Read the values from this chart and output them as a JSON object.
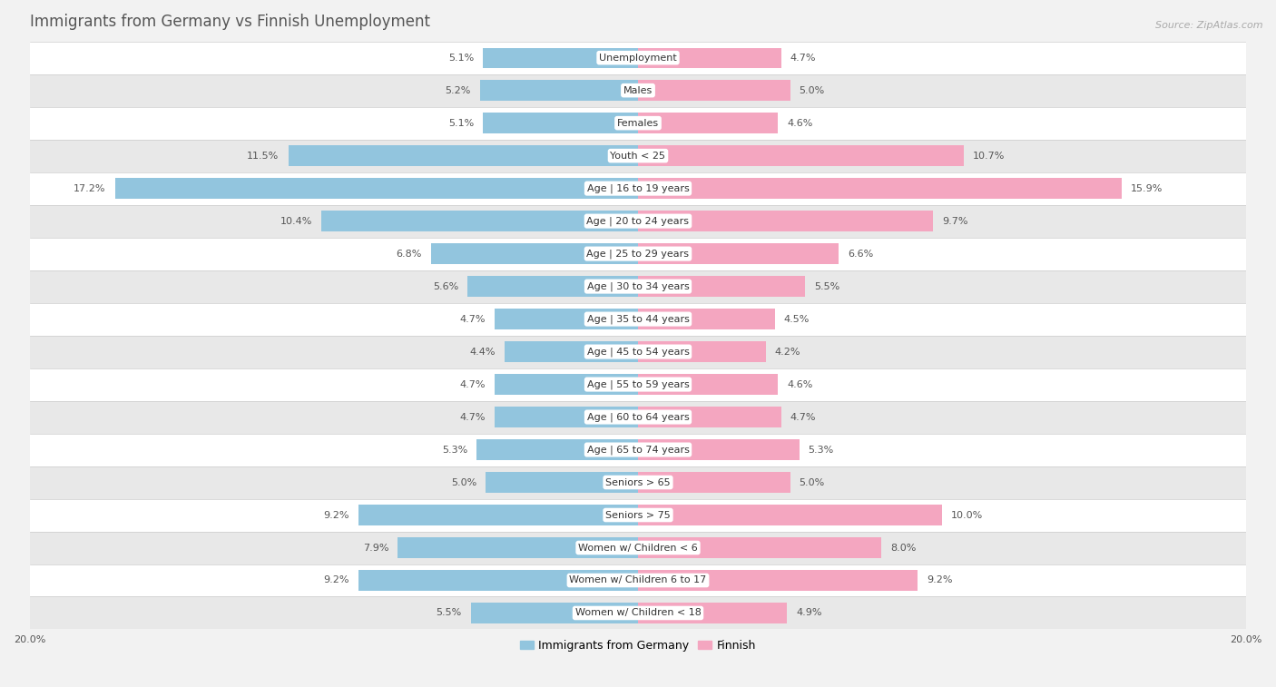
{
  "title": "Immigrants from Germany vs Finnish Unemployment",
  "source": "Source: ZipAtlas.com",
  "categories": [
    "Unemployment",
    "Males",
    "Females",
    "Youth < 25",
    "Age | 16 to 19 years",
    "Age | 20 to 24 years",
    "Age | 25 to 29 years",
    "Age | 30 to 34 years",
    "Age | 35 to 44 years",
    "Age | 45 to 54 years",
    "Age | 55 to 59 years",
    "Age | 60 to 64 years",
    "Age | 65 to 74 years",
    "Seniors > 65",
    "Seniors > 75",
    "Women w/ Children < 6",
    "Women w/ Children 6 to 17",
    "Women w/ Children < 18"
  ],
  "germany_values": [
    5.1,
    5.2,
    5.1,
    11.5,
    17.2,
    10.4,
    6.8,
    5.6,
    4.7,
    4.4,
    4.7,
    4.7,
    5.3,
    5.0,
    9.2,
    7.9,
    9.2,
    5.5
  ],
  "finnish_values": [
    4.7,
    5.0,
    4.6,
    10.7,
    15.9,
    9.7,
    6.6,
    5.5,
    4.5,
    4.2,
    4.6,
    4.7,
    5.3,
    5.0,
    10.0,
    8.0,
    9.2,
    4.9
  ],
  "germany_color": "#92c5de",
  "finnish_color": "#f4a6c0",
  "bar_height": 0.62,
  "xlim": 20.0,
  "background_color": "#f2f2f2",
  "row_color_light": "#ffffff",
  "row_color_dark": "#e8e8e8",
  "title_fontsize": 12,
  "label_fontsize": 8,
  "value_fontsize": 8,
  "legend_fontsize": 9,
  "source_fontsize": 8
}
